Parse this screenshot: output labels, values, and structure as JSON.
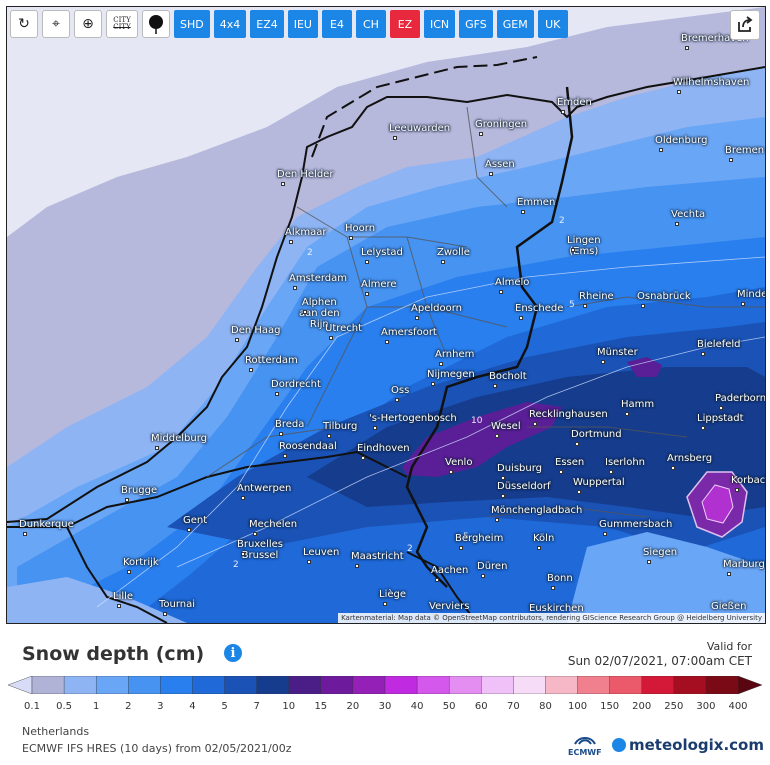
{
  "toolbar": {
    "tools": [
      {
        "name": "refresh-icon",
        "glyph": "↻"
      },
      {
        "name": "location-pin-icon",
        "glyph": "⌖"
      },
      {
        "name": "zoom-icon",
        "glyph": "⊕"
      }
    ],
    "city_toggle_top": "CITY",
    "city_toggle_bottom": "CITY",
    "models": [
      "SHD",
      "4x4",
      "EZ4",
      "IEU",
      "E4",
      "CH",
      "EZ",
      "ICN",
      "GFS",
      "GEM",
      "UK"
    ],
    "active_model": "EZ"
  },
  "map": {
    "attribution": "Kartenmaterial: Map data © OpenStreetMap contributors, rendering GIScience Research Group @ Heidelberg University",
    "cities": [
      {
        "name": "Bremerhaven",
        "key": "bremerhaven"
      },
      {
        "name": "Wilhelmshaven",
        "key": "wilhelmshaven"
      },
      {
        "name": "Emden",
        "key": "emden"
      },
      {
        "name": "Leeuwarden",
        "key": "leeuwarden"
      },
      {
        "name": "Groningen",
        "key": "groningen"
      },
      {
        "name": "Oldenburg",
        "key": "oldenburg"
      },
      {
        "name": "Bremen",
        "key": "bremen"
      },
      {
        "name": "Den Helder",
        "key": "den-helder"
      },
      {
        "name": "Assen",
        "key": "assen"
      },
      {
        "name": "Emmen",
        "key": "emmen"
      },
      {
        "name": "Vechta",
        "key": "vechta"
      },
      {
        "name": "Alkmaar",
        "key": "alkmaar"
      },
      {
        "name": "Hoorn",
        "key": "hoorn"
      },
      {
        "name": "Lelystad",
        "key": "lelystad"
      },
      {
        "name": "Zwolle",
        "key": "zwolle"
      },
      {
        "name": "Lingen (Ems)",
        "key": "lingen"
      },
      {
        "name": "Amsterdam",
        "key": "amsterdam"
      },
      {
        "name": "Almere",
        "key": "almere"
      },
      {
        "name": "Almelo",
        "key": "almelo"
      },
      {
        "name": "Rheine",
        "key": "rheine"
      },
      {
        "name": "Osnabrück",
        "key": "osnabrueck"
      },
      {
        "name": "Minden",
        "key": "minden"
      },
      {
        "name": "Alphen aan den Rijn",
        "key": "alphen"
      },
      {
        "name": "Apeldoorn",
        "key": "apeldoorn"
      },
      {
        "name": "Enschede",
        "key": "enschede"
      },
      {
        "name": "Den Haag",
        "key": "den-haag"
      },
      {
        "name": "Utrecht",
        "key": "utrecht"
      },
      {
        "name": "Amersfoort",
        "key": "amersfoort"
      },
      {
        "name": "Bielefeld",
        "key": "bielefeld"
      },
      {
        "name": "Rotterdam",
        "key": "rotterdam"
      },
      {
        "name": "Arnhem",
        "key": "arnhem"
      },
      {
        "name": "Münster",
        "key": "muenster"
      },
      {
        "name": "Dordrecht",
        "key": "dordrecht"
      },
      {
        "name": "Nijmegen",
        "key": "nijmegen"
      },
      {
        "name": "Bocholt",
        "key": "bocholt"
      },
      {
        "name": "Oss",
        "key": "oss"
      },
      {
        "name": "Paderborn",
        "key": "paderborn"
      },
      {
        "name": "Breda",
        "key": "breda"
      },
      {
        "name": "'s-Hertogenbosch",
        "key": "den-bosch"
      },
      {
        "name": "Recklinghausen",
        "key": "recklinghausen"
      },
      {
        "name": "Hamm",
        "key": "hamm"
      },
      {
        "name": "Lippstadt",
        "key": "lippstadt"
      },
      {
        "name": "Middelburg",
        "key": "middelburg"
      },
      {
        "name": "Tilburg",
        "key": "tilburg"
      },
      {
        "name": "Wesel",
        "key": "wesel"
      },
      {
        "name": "Dortmund",
        "key": "dortmund"
      },
      {
        "name": "Roosendaal",
        "key": "roosendaal"
      },
      {
        "name": "Eindhoven",
        "key": "eindhoven"
      },
      {
        "name": "Arnsberg",
        "key": "arnsberg"
      },
      {
        "name": "Venlo",
        "key": "venlo"
      },
      {
        "name": "Duisburg",
        "key": "duisburg"
      },
      {
        "name": "Essen",
        "key": "essen"
      },
      {
        "name": "Iserlohn",
        "key": "iserlohn"
      },
      {
        "name": "Korbach",
        "key": "korbach"
      },
      {
        "name": "Brugge",
        "key": "brugge"
      },
      {
        "name": "Antwerpen",
        "key": "antwerpen"
      },
      {
        "name": "Düsseldorf",
        "key": "duesseldorf"
      },
      {
        "name": "Wuppertal",
        "key": "wuppertal"
      },
      {
        "name": "Gent",
        "key": "gent"
      },
      {
        "name": "Mönchengladbach",
        "key": "moenchengladbach"
      },
      {
        "name": "Dunkerque",
        "key": "dunkerque"
      },
      {
        "name": "Mechelen",
        "key": "mechelen"
      },
      {
        "name": "Gummersbach",
        "key": "gummersbach"
      },
      {
        "name": "Bergheim",
        "key": "bergheim"
      },
      {
        "name": "Köln",
        "key": "koeln"
      },
      {
        "name": "Bruxelles Brussel",
        "key": "bruxelles"
      },
      {
        "name": "Leuven",
        "key": "leuven"
      },
      {
        "name": "Siegen",
        "key": "siegen"
      },
      {
        "name": "Kortrijk",
        "key": "kortrijk"
      },
      {
        "name": "Maastricht",
        "key": "maastricht"
      },
      {
        "name": "Aachen",
        "key": "aachen"
      },
      {
        "name": "Düren",
        "key": "dueren"
      },
      {
        "name": "Marburg",
        "key": "marburg"
      },
      {
        "name": "Bonn",
        "key": "bonn"
      },
      {
        "name": "Lille",
        "key": "lille"
      },
      {
        "name": "Tournai",
        "key": "tournai"
      },
      {
        "name": "Liège",
        "key": "liege"
      },
      {
        "name": "Verviers",
        "key": "verviers"
      },
      {
        "name": "Euskirchen",
        "key": "euskirchen"
      },
      {
        "name": "Gießen",
        "key": "giessen"
      }
    ],
    "contour_labels": [
      "2",
      "2",
      "2",
      "5",
      "5",
      "10",
      "2"
    ]
  },
  "panel": {
    "title": "Snow depth (cm)",
    "info_glyph": "i",
    "valid_for_label": "Valid for",
    "valid_time": "Sun 02/07/2021, 07:00am CET",
    "region": "Netherlands",
    "source": "ECMWF IFS HRES (10 days) from 02/05/2021/00z",
    "ecmwf_logo": "ECMWF",
    "brand": "meteologix.com"
  },
  "legend": {
    "values": [
      "0.1",
      "0.5",
      "1",
      "2",
      "3",
      "4",
      "5",
      "7",
      "10",
      "15",
      "20",
      "30",
      "40",
      "50",
      "60",
      "70",
      "80",
      "100",
      "150",
      "200",
      "250",
      "300",
      "400"
    ],
    "colors": [
      "#d8dcf6",
      "#b0b3d6",
      "#8fb4f4",
      "#6aa6f6",
      "#4693f2",
      "#2a7fee",
      "#1f69d8",
      "#1a52b6",
      "#163c8e",
      "#4a1e86",
      "#6e1a9c",
      "#9420b8",
      "#c02ae0",
      "#d458ec",
      "#e48ef2",
      "#f0c0f8",
      "#f7dcf8",
      "#f6b8c6",
      "#f0808e",
      "#ea5a6a",
      "#d41838",
      "#a40e20",
      "#7a0a16",
      "#5a0610"
    ]
  }
}
